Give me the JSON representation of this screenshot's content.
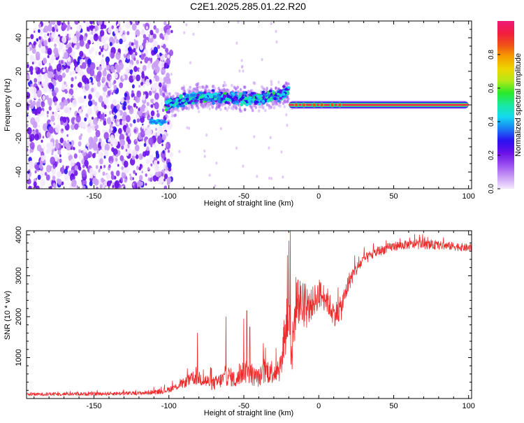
{
  "figure_title": "C2E1.2025.285.01.22.R20",
  "chart_data": [
    {
      "id": "spectrogram",
      "type": "heatmap",
      "title": "",
      "xlabel": "Height of straight line (km)",
      "ylabel": "Frequency (Hz)",
      "xlim": [
        -195,
        102
      ],
      "ylim": [
        -50,
        50
      ],
      "x_ticks": [
        -150,
        -100,
        -50,
        0,
        50,
        100
      ],
      "x_tick_labels": [
        "-150",
        "-100",
        "-50",
        "0",
        "50",
        "100"
      ],
      "y_ticks": [
        -40,
        -20,
        0,
        20,
        40
      ],
      "y_tick_labels": [
        "-40",
        "-20",
        "0",
        "20",
        "40"
      ],
      "colorbar": {
        "label": "Normalized spectral amplitude",
        "range": [
          0,
          1
        ],
        "ticks": [
          0,
          0.2,
          0.4,
          0.6,
          0.8
        ],
        "tick_labels": [
          "0.0",
          "0.2",
          "0.4",
          "0.6",
          "0.8"
        ],
        "colors": [
          "#f4e9ff",
          "#c99cf5",
          "#9a4ff0",
          "#6a10e8",
          "#2a10f0",
          "#1a7cf5",
          "#13d9f0",
          "#1ae8a0",
          "#28e828",
          "#b4ea18",
          "#eed600",
          "#f5a000",
          "#f05018",
          "#f01c40",
          "#ee1a78"
        ]
      },
      "regions": [
        {
          "name": "noise",
          "x_range": [
            -195,
            -102
          ],
          "freq_range": [
            -50,
            50
          ],
          "amplitude": "0.0-0.25"
        },
        {
          "name": "onset",
          "x_range": [
            -112,
            -102
          ],
          "freq_center": -10,
          "amplitude": "0.3-0.45"
        },
        {
          "name": "tracking",
          "x_range": [
            -102,
            -20
          ],
          "freq_center_path": [
            [
              -102,
              0
            ],
            [
              -80,
              5
            ],
            [
              -60,
              4
            ],
            [
              -40,
              4
            ],
            [
              -25,
              6
            ],
            [
              -20,
              8
            ]
          ],
          "amplitude": "0.3-0.55"
        },
        {
          "name": "stable_tone",
          "x_range": [
            -20,
            100
          ],
          "freq_center": 0,
          "amplitude": "0.85-1.0"
        }
      ]
    },
    {
      "id": "snr",
      "type": "line",
      "title": "",
      "xlabel": "Height of straight line (km)",
      "ylabel": "SNR (10 * v/v)",
      "xlim": [
        -195,
        102
      ],
      "ylim": [
        0,
        4100
      ],
      "x_ticks": [
        -150,
        -100,
        -50,
        0,
        50,
        100
      ],
      "x_tick_labels": [
        "-150",
        "-100",
        "-50",
        "0",
        "50",
        "100"
      ],
      "y_ticks": [
        1000,
        2000,
        3000,
        4000
      ],
      "y_tick_labels": [
        "1000",
        "2000",
        "3000",
        "4000"
      ],
      "series": [
        {
          "name": "SNR",
          "color": "#ee2a2a",
          "envelope": {
            "x": [
              -195,
              -170,
              -150,
              -120,
              -105,
              -100,
              -95,
              -90,
              -85,
              -80,
              -75,
              -70,
              -65,
              -60,
              -55,
              -50,
              -45,
              -40,
              -35,
              -30,
              -25,
              -22,
              -20,
              -18,
              -15,
              -12,
              -10,
              -5,
              0,
              5,
              10,
              15,
              20,
              25,
              30,
              40,
              50,
              60,
              70,
              80,
              90,
              100
            ],
            "y": [
              100,
              110,
              115,
              130,
              170,
              220,
              290,
              380,
              470,
              520,
              420,
              360,
              450,
              560,
              430,
              680,
              560,
              510,
              680,
              660,
              820,
              1650,
              2300,
              1050,
              2450,
              2350,
              2000,
              2300,
              2550,
              2450,
              2050,
              2200,
              2850,
              3150,
              3400,
              3600,
              3720,
              3760,
              3760,
              3740,
              3720,
              3680
            ],
            "spread": [
              60,
              70,
              70,
              80,
              100,
              120,
              150,
              200,
              260,
              320,
              300,
              280,
              320,
              400,
              320,
              480,
              420,
              380,
              520,
              500,
              650,
              1250,
              1700,
              950,
              1100,
              900,
              700,
              650,
              600,
              550,
              500,
              500,
              380,
              280,
              220,
              200,
              190,
              180,
              180,
              170,
              170,
              160
            ]
          },
          "spikes": [
            {
              "x": -81,
              "y": 1600
            },
            {
              "x": -62,
              "y": 2000
            },
            {
              "x": -50,
              "y": 1950
            },
            {
              "x": -48,
              "y": 2150
            },
            {
              "x": -46,
              "y": 1750
            },
            {
              "x": -37,
              "y": 1350
            },
            {
              "x": -20,
              "y": 3850
            },
            {
              "x": -19,
              "y": 4100
            },
            {
              "x": -21,
              "y": 3500
            }
          ]
        }
      ]
    }
  ]
}
